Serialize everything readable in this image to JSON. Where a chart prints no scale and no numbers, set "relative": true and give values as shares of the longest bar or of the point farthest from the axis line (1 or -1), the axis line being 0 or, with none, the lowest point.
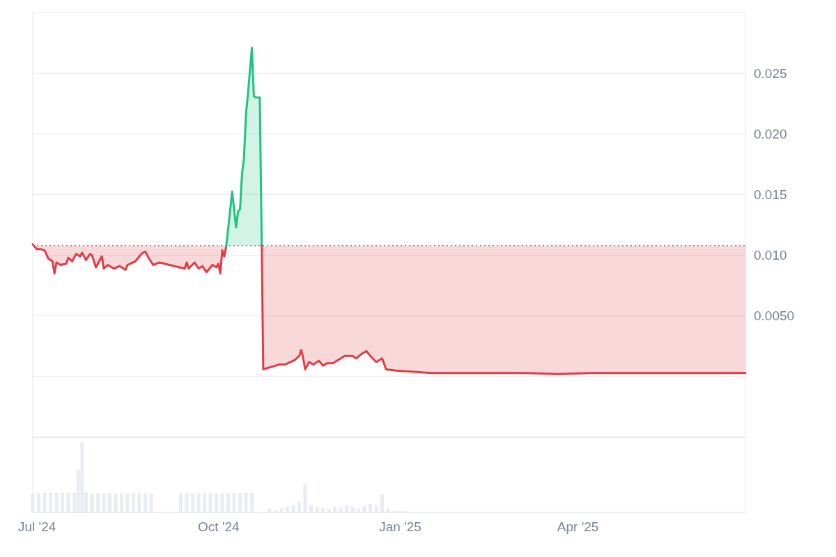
{
  "chart_data": [
    {
      "type": "line",
      "xlim": [
        "2024-06-29",
        "2025-06-25"
      ],
      "ylim": [
        -0.005,
        0.03
      ],
      "yticks": [
        {
          "value": -0.005,
          "label": null
        },
        {
          "value": 0,
          "label": null
        },
        {
          "value": 0.005,
          "label": "0.0050"
        },
        {
          "value": 0.01,
          "label": "0.010"
        },
        {
          "value": 0.015,
          "label": "0.015"
        },
        {
          "value": 0.02,
          "label": "0.020"
        },
        {
          "value": 0.025,
          "label": "0.025"
        }
      ],
      "grid": "y",
      "tick_labels": "y",
      "marker": "none",
      "ref_lines": [
        {
          "axis": "y",
          "value": 0.0108,
          "label": null,
          "color": "#888888",
          "line_style": "dotted"
        }
      ],
      "series": [
        {
          "type": "line",
          "color": "#e23b46",
          "x": [
            "2024-06-29",
            "2024-07-01",
            "2024-07-03",
            "2024-07-05",
            "2024-07-07",
            "2024-07-09",
            "2024-07-10",
            "2024-07-11",
            "2024-07-13",
            "2024-07-16",
            "2024-07-17",
            "2024-07-19",
            "2024-07-21",
            "2024-07-23",
            "2024-07-24",
            "2024-07-26",
            "2024-07-28",
            "2024-07-29",
            "2024-07-31",
            "2024-08-03",
            "2024-08-04",
            "2024-08-06",
            "2024-08-09",
            "2024-08-12",
            "2024-08-15",
            "2024-08-16",
            "2024-08-20",
            "2024-08-23",
            "2024-08-25",
            "2024-08-27",
            "2024-08-29",
            "2024-09-01",
            "2024-09-14",
            "2024-09-15",
            "2024-09-16",
            "2024-09-19",
            "2024-09-21",
            "2024-09-23",
            "2024-09-25",
            "2024-09-28",
            "2024-09-30",
            "2024-10-01",
            "2024-10-02",
            "2024-10-03",
            "2024-10-04",
            "2024-10-05"
          ],
          "values": [
            0.0109,
            0.0105,
            0.0105,
            0.0104,
            0.0097,
            0.0095,
            0.0085,
            0.0094,
            0.0092,
            0.0093,
            0.0098,
            0.0095,
            0.0101,
            0.0099,
            0.0102,
            0.0096,
            0.0101,
            0.01,
            0.009,
            0.0099,
            0.0089,
            0.0092,
            0.0089,
            0.0091,
            0.0088,
            0.0092,
            0.0095,
            0.0101,
            0.0103,
            0.0097,
            0.0092,
            0.0094,
            0.0089,
            0.0094,
            0.0089,
            0.0094,
            0.0089,
            0.0091,
            0.0086,
            0.0092,
            0.009,
            0.0093,
            0.0085,
            0.0104,
            0.0099,
            0.0107
          ],
          "lower": [
            0.0109,
            0.0105,
            0.0105,
            0.0104,
            0.0097,
            0.0095,
            0.0085,
            0.0094,
            0.0092,
            0.0093,
            0.0098,
            0.0095,
            0.0101,
            0.0099,
            0.0102,
            0.0096,
            0.0101,
            0.01,
            0.009,
            0.0099,
            0.0089,
            0.0092,
            0.0089,
            0.0091,
            0.0088,
            0.0092,
            0.0095,
            0.0101,
            0.0103,
            0.0097,
            0.0092,
            0.0094,
            0.0089,
            0.0094,
            0.0089,
            0.0094,
            0.0089,
            0.0091,
            0.0086,
            0.0092,
            0.009,
            0.0093,
            0.0085,
            0.0104,
            0.0099,
            0.0107
          ],
          "upper": [
            0.0108,
            0.0108,
            0.0108,
            0.0108,
            0.0108,
            0.0108,
            0.0108,
            0.0108,
            0.0108,
            0.0108,
            0.0108,
            0.0108,
            0.0108,
            0.0108,
            0.0108,
            0.0108,
            0.0108,
            0.0108,
            0.0108,
            0.0108,
            0.0108,
            0.0108,
            0.0108,
            0.0108,
            0.0108,
            0.0108,
            0.0108,
            0.0108,
            0.0108,
            0.0108,
            0.0108,
            0.0108,
            0.0108,
            0.0108,
            0.0108,
            0.0108,
            0.0108,
            0.0108,
            0.0108,
            0.0108,
            0.0108,
            0.0108,
            0.0108,
            0.0108,
            0.0108,
            0.0108
          ]
        },
        {
          "type": "area",
          "color": "#1ec47f",
          "x": [
            "2024-10-05",
            "2024-10-08",
            "2024-10-10",
            "2024-10-11",
            "2024-10-12",
            "2024-10-13",
            "2024-10-14",
            "2024-10-15",
            "2024-10-16",
            "2024-10-18",
            "2024-10-19",
            "2024-10-20",
            "2024-10-22",
            "2024-10-23"
          ],
          "values": [
            0.0107,
            0.01525,
            0.0123,
            0.0136,
            0.0138,
            0.0167,
            0.018,
            0.0216,
            0.0233,
            0.0271,
            0.0231,
            0.023,
            0.023,
            0.0108
          ]
        },
        {
          "type": "line",
          "color": "#e23b46",
          "x": [
            "2024-10-23",
            "2024-10-23T18:00",
            "2024-10-28",
            "2024-11-01",
            "2024-11-04",
            "2024-11-08",
            "2024-11-09",
            "2024-11-11",
            "2024-11-12",
            "2024-11-13",
            "2024-11-14",
            "2024-11-16",
            "2024-11-18",
            "2024-11-21",
            "2024-11-23",
            "2024-11-25",
            "2024-11-28",
            "2024-12-02",
            "2024-12-04",
            "2024-12-08",
            "2024-12-10",
            "2024-12-12",
            "2024-12-15",
            "2024-12-17",
            "2024-12-20",
            "2024-12-23",
            "2024-12-25",
            "2024-12-30",
            "2025-01-08",
            "2025-01-17",
            "2025-01-31",
            "2025-03-04",
            "2025-03-22",
            "2025-04-08",
            "2025-05-31",
            "2025-06-25"
          ],
          "values": [
            0.0108,
            0.0006,
            0.0008,
            0.001,
            0.001,
            0.0013,
            0.0014,
            0.0017,
            0.0022,
            0.0015,
            0.0006,
            0.0012,
            0.001,
            0.0013,
            0.0009,
            0.0011,
            0.0011,
            0.0015,
            0.0017,
            0.0017,
            0.0015,
            0.0018,
            0.0021,
            0.0017,
            0.0012,
            0.0015,
            0.0006,
            0.0005,
            0.0004,
            0.0003,
            0.0003,
            0.0003,
            0.0002,
            0.0003,
            0.0003,
            0.0003
          ],
          "lower": [
            0.0108,
            0.0006,
            0.0008,
            0.001,
            0.001,
            0.0013,
            0.0014,
            0.0017,
            0.0022,
            0.0015,
            0.0006,
            0.0012,
            0.001,
            0.0013,
            0.0009,
            0.0011,
            0.0011,
            0.0015,
            0.0017,
            0.0017,
            0.0015,
            0.0018,
            0.0021,
            0.0017,
            0.0012,
            0.0015,
            0.0006,
            0.0005,
            0.0004,
            0.0003,
            0.0003,
            0.0003,
            0.0002,
            0.0003,
            0.0003,
            0.0003
          ],
          "upper": [
            0.0108,
            0.0108,
            0.0108,
            0.0108,
            0.0108,
            0.0108,
            0.0108,
            0.0108,
            0.0108,
            0.0108,
            0.0108,
            0.0108,
            0.0108,
            0.0108,
            0.0108,
            0.0108,
            0.0108,
            0.0108,
            0.0108,
            0.0108,
            0.0108,
            0.0108,
            0.0108,
            0.0108,
            0.0108,
            0.0108,
            0.0108,
            0.0108,
            0.0108,
            0.0108,
            0.0108,
            0.0108,
            0.0108,
            0.0108,
            0.0108,
            0.0108
          ]
        }
      ]
    },
    {
      "type": "bar",
      "relative": true,
      "color": "#e9edf2",
      "tick_labels": "x",
      "xlim": [
        "2024-06-29",
        "2025-06-25"
      ],
      "xticks": [
        {
          "value": "2024-07-01",
          "label": "Jul '24"
        },
        {
          "value": "2024-10-01",
          "label": "Oct '24"
        },
        {
          "value": "2025-01-01",
          "label": "Jan '25"
        },
        {
          "value": "2025-04-01",
          "label": "Apr '25"
        }
      ],
      "x": [
        "2024-06-29",
        "2024-07-02",
        "2024-07-05",
        "2024-07-08",
        "2024-07-11",
        "2024-07-14",
        "2024-07-17",
        "2024-07-20",
        "2024-07-22",
        "2024-07-24",
        "2024-07-26",
        "2024-07-29",
        "2024-08-01",
        "2024-08-04",
        "2024-08-07",
        "2024-08-10",
        "2024-08-13",
        "2024-08-16",
        "2024-08-19",
        "2024-08-22",
        "2024-08-25",
        "2024-08-28",
        "2024-09-12",
        "2024-09-15",
        "2024-09-18",
        "2024-09-21",
        "2024-09-24",
        "2024-09-27",
        "2024-09-30",
        "2024-10-03",
        "2024-10-06",
        "2024-10-09",
        "2024-10-12",
        "2024-10-15",
        "2024-10-18",
        "2024-10-27",
        "2024-10-30",
        "2024-11-02",
        "2024-11-05",
        "2024-11-08",
        "2024-11-11",
        "2024-11-14",
        "2024-11-17",
        "2024-11-20",
        "2024-11-23",
        "2024-11-26",
        "2024-11-29",
        "2024-12-02",
        "2024-12-05",
        "2024-12-08",
        "2024-12-11",
        "2024-12-14",
        "2024-12-17",
        "2024-12-20",
        "2024-12-23",
        "2024-12-26",
        "2024-12-29",
        "2025-01-01",
        "2025-01-04"
      ],
      "values": [
        0.27,
        0.27,
        0.28,
        0.28,
        0.28,
        0.28,
        0.28,
        0.28,
        0.6,
        1,
        0.28,
        0.27,
        0.27,
        0.27,
        0.27,
        0.27,
        0.27,
        0.27,
        0.27,
        0.27,
        0.27,
        0.27,
        0.27,
        0.27,
        0.27,
        0.27,
        0.27,
        0.27,
        0.27,
        0.27,
        0.27,
        0.27,
        0.27,
        0.28,
        0.28,
        0.05,
        0.03,
        0.06,
        0.08,
        0.1,
        0.15,
        0.4,
        0.1,
        0.08,
        0.06,
        0.05,
        0.08,
        0.07,
        0.1,
        0.08,
        0.06,
        0.09,
        0.12,
        0.1,
        0.25,
        0.05,
        0.02,
        0.02,
        0.02
      ]
    }
  ]
}
